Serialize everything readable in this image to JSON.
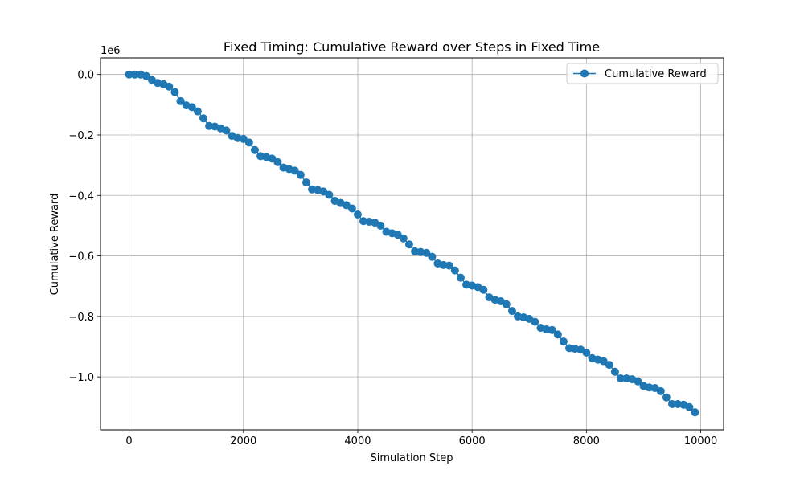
{
  "chart_data": {
    "type": "line",
    "title": "Fixed Timing: Cumulative Reward over Steps in Fixed Time",
    "xlabel": "Simulation Step",
    "ylabel": "Cumulative Reward",
    "y_scale_label": "1e6",
    "xlim": [
      -500,
      10400
    ],
    "ylim": [
      -1.175,
      0.055
    ],
    "x_ticks": [
      0,
      2000,
      4000,
      6000,
      8000,
      10000
    ],
    "x_tick_labels": [
      "0",
      "2000",
      "4000",
      "6000",
      "8000",
      "10000"
    ],
    "y_ticks": [
      0.0,
      -0.2,
      -0.4,
      -0.6,
      -0.8,
      -1.0
    ],
    "y_tick_labels": [
      "0.0",
      "−0.2",
      "−0.4",
      "−0.6",
      "−0.8",
      "−1.0"
    ],
    "grid": true,
    "legend_position": "top-right",
    "series": [
      {
        "name": "Cumulative Reward",
        "color": "#1f77b4",
        "marker": "circle",
        "x": [
          0,
          100,
          200,
          300,
          400,
          500,
          600,
          700,
          800,
          900,
          1000,
          1100,
          1200,
          1300,
          1400,
          1500,
          1600,
          1700,
          1800,
          1900,
          2000,
          2100,
          2200,
          2300,
          2400,
          2500,
          2600,
          2700,
          2800,
          2900,
          3000,
          3100,
          3200,
          3300,
          3400,
          3500,
          3600,
          3700,
          3800,
          3900,
          4000,
          4100,
          4200,
          4300,
          4400,
          4500,
          4600,
          4700,
          4800,
          4900,
          5000,
          5100,
          5200,
          5300,
          5400,
          5500,
          5600,
          5700,
          5800,
          5900,
          6000,
          6100,
          6200,
          6300,
          6400,
          6500,
          6600,
          6700,
          6800,
          6900,
          7000,
          7100,
          7200,
          7300,
          7400,
          7500,
          7600,
          7700,
          7800,
          7900,
          8000,
          8100,
          8200,
          8300,
          8400,
          8500,
          8600,
          8700,
          8800,
          8900,
          9000,
          9100,
          9200,
          9300,
          9400,
          9500,
          9600,
          9700,
          9800,
          9900
        ],
        "y": [
          0.0,
          0.0,
          0.0,
          -0.005,
          -0.018,
          -0.028,
          -0.032,
          -0.04,
          -0.058,
          -0.088,
          -0.102,
          -0.108,
          -0.122,
          -0.145,
          -0.17,
          -0.172,
          -0.178,
          -0.185,
          -0.203,
          -0.21,
          -0.213,
          -0.225,
          -0.25,
          -0.27,
          -0.273,
          -0.278,
          -0.29,
          -0.308,
          -0.313,
          -0.318,
          -0.332,
          -0.357,
          -0.38,
          -0.382,
          -0.387,
          -0.398,
          -0.418,
          -0.425,
          -0.432,
          -0.443,
          -0.463,
          -0.485,
          -0.487,
          -0.49,
          -0.5,
          -0.52,
          -0.525,
          -0.53,
          -0.542,
          -0.562,
          -0.585,
          -0.587,
          -0.59,
          -0.603,
          -0.625,
          -0.63,
          -0.632,
          -0.648,
          -0.672,
          -0.695,
          -0.698,
          -0.703,
          -0.712,
          -0.737,
          -0.745,
          -0.75,
          -0.76,
          -0.782,
          -0.8,
          -0.803,
          -0.808,
          -0.818,
          -0.838,
          -0.843,
          -0.845,
          -0.86,
          -0.883,
          -0.905,
          -0.907,
          -0.91,
          -0.92,
          -0.938,
          -0.943,
          -0.948,
          -0.96,
          -0.983,
          -1.005,
          -1.005,
          -1.008,
          -1.015,
          -1.03,
          -1.035,
          -1.037,
          -1.047,
          -1.068,
          -1.09,
          -1.09,
          -1.092,
          -1.1,
          -1.117
        ]
      }
    ]
  }
}
